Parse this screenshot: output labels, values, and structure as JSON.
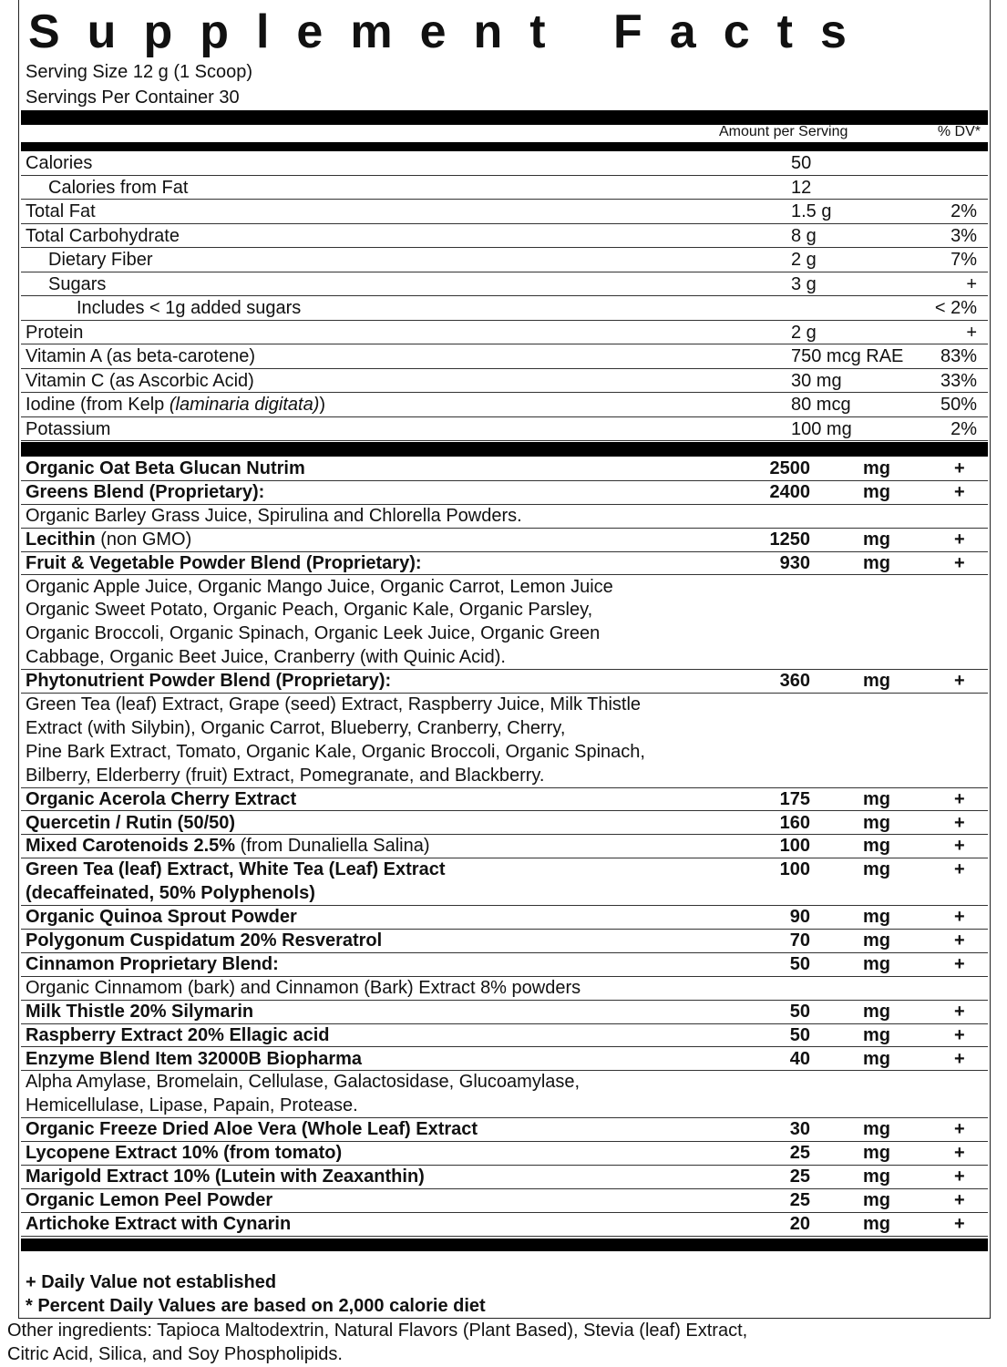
{
  "title": "Supplement Facts",
  "serving_size": "Serving Size 12 g (1 Scoop)",
  "servings_per_container": "Servings Per Container 30",
  "header": {
    "amount": "Amount per Serving",
    "dv": "% DV*"
  },
  "nutrients": [
    {
      "name": "Calories",
      "indent": 0,
      "amount": "50",
      "dv": ""
    },
    {
      "name": "Calories from Fat",
      "indent": 1,
      "amount": "12",
      "dv": ""
    },
    {
      "name": "Total Fat",
      "indent": 0,
      "amount": "1.5 g",
      "dv": "2%"
    },
    {
      "name": "Total Carbohydrate",
      "indent": 0,
      "amount": "8 g",
      "dv": "3%"
    },
    {
      "name": "Dietary Fiber",
      "indent": 1,
      "amount": "2 g",
      "dv": "7%"
    },
    {
      "name": "Sugars",
      "indent": 1,
      "amount": "3 g",
      "dv": "+"
    },
    {
      "name": "Includes < 1g added sugars",
      "indent": 2,
      "amount": "",
      "dv": "< 2%"
    },
    {
      "name": "Protein",
      "indent": 0,
      "amount": "2 g",
      "dv": "+"
    },
    {
      "name": "Vitamin A (as beta-carotene)",
      "indent": 0,
      "amount": "750 mcg RAE",
      "dv": "83%"
    },
    {
      "name": "Vitamin C (as Ascorbic Acid)",
      "indent": 0,
      "amount": "30 mg",
      "dv": "33%"
    },
    {
      "name": "Iodine (from Kelp ",
      "name_italic": "(laminaria digitata)",
      "name_suffix": ")",
      "indent": 0,
      "amount": "80 mcg",
      "dv": "50%"
    },
    {
      "name": "Potassium",
      "indent": 0,
      "amount": "100 mg",
      "dv": "2%"
    }
  ],
  "blends": [
    {
      "name": "Organic Oat Beta Glucan Nutrim",
      "amount": "2500",
      "unit": "mg",
      "dv": "+"
    },
    {
      "name": "Greens Blend (Proprietary):",
      "amount": "2400",
      "unit": "mg",
      "dv": "+",
      "desc": [
        "Organic Barley Grass Juice, Spirulina and Chlorella Powders."
      ]
    },
    {
      "name": "Lecithin",
      "name_extra": " (non GMO)",
      "amount": "1250",
      "unit": "mg",
      "dv": "+"
    },
    {
      "name": "Fruit & Vegetable Powder Blend (Proprietary):",
      "amount": "930",
      "unit": "mg",
      "dv": "+",
      "desc": [
        "Organic Apple Juice, Organic Mango Juice, Organic Carrot, Lemon Juice",
        "Organic Sweet Potato, Organic Peach, Organic Kale, Organic Parsley,",
        "Organic Broccoli, Organic Spinach, Organic Leek Juice, Organic Green",
        "Cabbage, Organic Beet Juice, Cranberry (with Quinic Acid)."
      ]
    },
    {
      "name": "Phytonutrient Powder Blend (Proprietary):",
      "amount": "360",
      "unit": "mg",
      "dv": "+",
      "desc": [
        "Green Tea (leaf) Extract, Grape (seed) Extract, Raspberry Juice, Milk Thistle",
        "Extract (with Silybin), Organic Carrot, Blueberry, Cranberry, Cherry,",
        "Pine Bark Extract, Tomato, Organic Kale, Organic Broccoli, Organic Spinach,",
        "Bilberry, Elderberry (fruit) Extract, Pomegranate, and Blackberry."
      ]
    },
    {
      "name": "Organic Acerola Cherry Extract",
      "amount": "175",
      "unit": "mg",
      "dv": "+"
    },
    {
      "name": "Quercetin / Rutin (50/50)",
      "amount": "160",
      "unit": "mg",
      "dv": "+"
    },
    {
      "name": "Mixed Carotenoids 2.5%",
      "name_extra": " (from Dunaliella Salina)",
      "amount": "100",
      "unit": "mg",
      "dv": "+"
    },
    {
      "name": "Green Tea (leaf) Extract, White Tea (Leaf) Extract",
      "name2": "(decaffeinated,  50% Polyphenols)",
      "amount": "100",
      "unit": "mg",
      "dv": "+"
    },
    {
      "name": "Organic Quinoa Sprout Powder",
      "amount": "90",
      "unit": "mg",
      "dv": "+"
    },
    {
      "name": "Polygonum Cuspidatum 20% Resveratrol",
      "amount": "70",
      "unit": "mg",
      "dv": "+"
    },
    {
      "name": "Cinnamon Proprietary Blend:",
      "amount": "50",
      "unit": "mg",
      "dv": "+",
      "desc": [
        "Organic Cinnamom (bark) and Cinnamon (Bark) Extract 8% powders"
      ]
    },
    {
      "name": "Milk Thistle 20% Silymarin",
      "amount": "50",
      "unit": "mg",
      "dv": "+"
    },
    {
      "name": "Raspberry Extract 20% Ellagic acid",
      "amount": "50",
      "unit": "mg",
      "dv": "+"
    },
    {
      "name": "Enzyme Blend Item 32000B Biopharma",
      "amount": "40",
      "unit": "mg",
      "dv": "+",
      "desc": [
        "Alpha Amylase, Bromelain, Cellulase, Galactosidase,  Glucoamylase,",
        "Hemicellulase, Lipase, Papain, Protease."
      ]
    },
    {
      "name": "Organic Freeze Dried Aloe Vera  (Whole Leaf) Extract",
      "amount": "30",
      "unit": "mg",
      "dv": "+"
    },
    {
      "name": "Lycopene Extract 10% (from tomato)",
      "amount": "25",
      "unit": "mg",
      "dv": "+"
    },
    {
      "name": "Marigold Extract 10% (Lutein with Zeaxanthin)",
      "amount": "25",
      "unit": "mg",
      "dv": "+"
    },
    {
      "name": "Organic Lemon Peel Powder",
      "amount": "25",
      "unit": "mg",
      "dv": "+"
    },
    {
      "name": "Artichoke Extract with Cynarin",
      "amount": "20",
      "unit": "mg",
      "dv": "+"
    }
  ],
  "footnotes": [
    "+ Daily Value not established",
    "*  Percent Daily Values are based on 2,000 calorie diet"
  ],
  "other_ingredients": [
    "Other ingredients:  Tapioca Maltodextrin, Natural Flavors (Plant Based), Stevia (leaf) Extract,",
    "Citric Acid, Silica, and Soy Phospholipids."
  ]
}
